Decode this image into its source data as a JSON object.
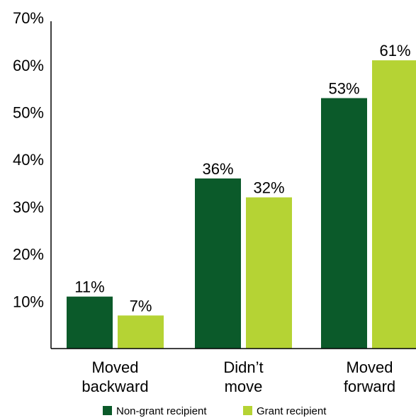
{
  "chart_data": {
    "type": "bar",
    "categories": [
      [
        "Moved",
        "backward"
      ],
      [
        "Didn’t",
        "move"
      ],
      [
        "Moved",
        "forward"
      ]
    ],
    "series": [
      {
        "name": "Non-grant recipient",
        "values": [
          11,
          36,
          53
        ],
        "labels": [
          "11%",
          "36%",
          "53%"
        ],
        "color": "#0b5a2a"
      },
      {
        "name": "Grant recipient",
        "values": [
          7,
          32,
          61
        ],
        "labels": [
          "7%",
          "32%",
          "61%"
        ],
        "color": "#b5d334"
      }
    ],
    "ylim": [
      0,
      70
    ],
    "yticks": [
      10,
      20,
      30,
      40,
      50,
      60,
      70
    ],
    "ytick_labels": [
      "10%",
      "20%",
      "30%",
      "40%",
      "50%",
      "60%",
      "70%"
    ],
    "title": "",
    "xlabel": "",
    "ylabel": "",
    "grid": false,
    "legend_position": "bottom"
  }
}
